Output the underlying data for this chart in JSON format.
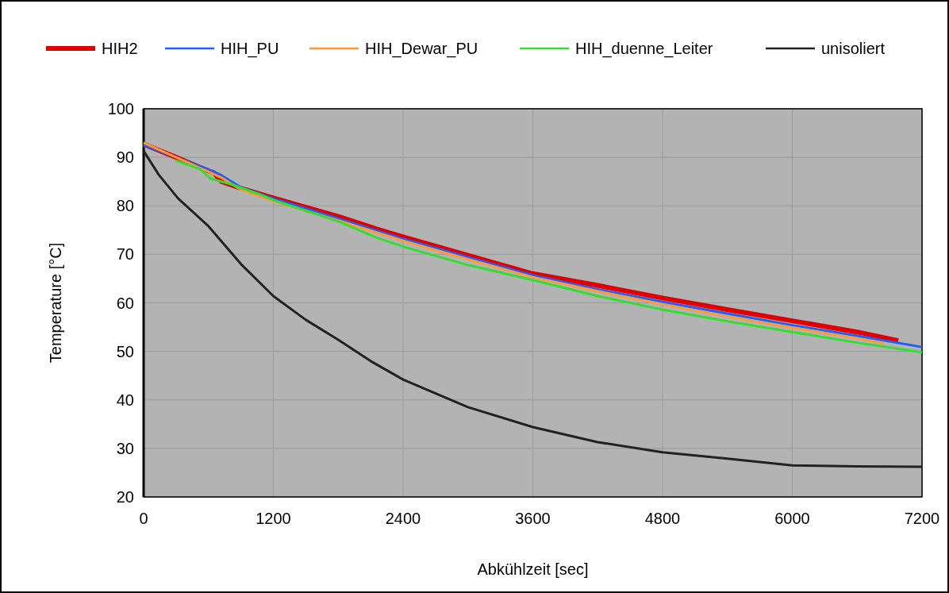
{
  "chart_data": {
    "type": "line",
    "xlabel": "Abkühlzeit [sec]",
    "ylabel": "Temperature [°C]",
    "xlim": [
      0,
      7200
    ],
    "xticks": [
      0,
      1200,
      2400,
      3600,
      4800,
      6000,
      7200
    ],
    "ylim": [
      20,
      100
    ],
    "yticks": [
      20,
      30,
      40,
      50,
      60,
      70,
      80,
      90,
      100
    ],
    "grid": true,
    "legend": "top",
    "line_style": "solid",
    "series": [
      {
        "name": "HIH2",
        "color": "#e00000",
        "x": [
          0,
          300,
          600,
          650,
          720,
          900,
          1200,
          1800,
          2160,
          2400,
          3000,
          3600,
          4200,
          4800,
          5400,
          6000,
          6600,
          6980
        ],
        "values": [
          92.7,
          90,
          87.2,
          86.8,
          85,
          83.6,
          81.6,
          77.8,
          75.2,
          73.6,
          69.8,
          66,
          63.6,
          61,
          58.6,
          56.3,
          54,
          52.2
        ]
      },
      {
        "name": "HIH_PU",
        "color": "#1f5fff",
        "x": [
          0,
          300,
          600,
          720,
          900,
          1200,
          1800,
          2400,
          3000,
          3600,
          4200,
          4800,
          5400,
          6000,
          6600,
          7200
        ],
        "values": [
          92.5,
          null,
          87.5,
          86.3,
          83.8,
          81.5,
          77.4,
          73.2,
          69.4,
          65.7,
          62.8,
          60.2,
          57.8,
          55.4,
          53.2,
          50.9
        ]
      },
      {
        "name": "HIH_Dewar_PU",
        "color": "#ff9933",
        "x": [
          0,
          300,
          600,
          720,
          900,
          1200,
          1800,
          2400,
          3000,
          3600,
          4200,
          4800,
          5400,
          6000,
          6600,
          6840
        ],
        "values": [
          93,
          90,
          87,
          85.8,
          83.3,
          81,
          77,
          72.8,
          69,
          65.3,
          62.4,
          59.7,
          57.2,
          54.9,
          52.7,
          51.7
        ]
      },
      {
        "name": "HIH_duenne_Leiter",
        "color": "#33dd33",
        "x": [
          290,
          520,
          620,
          800,
          1080,
          1200,
          1800,
          2160,
          2400,
          3000,
          3600,
          4200,
          4800,
          5400,
          6000,
          6600,
          7200
        ],
        "values": [
          89.4,
          87.6,
          85.6,
          84.5,
          82.3,
          81.2,
          76.8,
          73.4,
          71.6,
          67.8,
          64.7,
          61.4,
          58.6,
          56.2,
          54,
          51.8,
          49.8
        ]
      },
      {
        "name": "unisoliert",
        "color": "#222222",
        "x": [
          0,
          140,
          320,
          600,
          900,
          1200,
          1500,
          1800,
          2100,
          2400,
          3000,
          3600,
          4200,
          4800,
          5400,
          6000,
          6600,
          7200
        ],
        "values": [
          91.3,
          86.4,
          81.5,
          75.8,
          68,
          61.4,
          56.5,
          52.4,
          48,
          44.2,
          38.5,
          34.4,
          31.3,
          29.2,
          27.9,
          26.5,
          26.3,
          26.2
        ]
      }
    ]
  }
}
